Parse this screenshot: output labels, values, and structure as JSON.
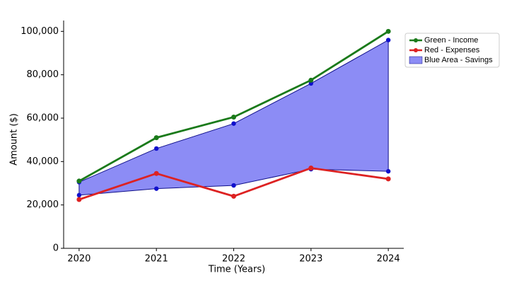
{
  "chart_data": {
    "type": "line",
    "x_label": "Time (Years)",
    "y_label": "Amount ($)",
    "x": [
      2020,
      2021,
      2022,
      2023,
      2024
    ],
    "xlim": [
      2019.8,
      2024.2
    ],
    "xticks": [
      2020,
      2021,
      2022,
      2023,
      2024
    ],
    "ylim": [
      0,
      105000
    ],
    "yticks": [
      0,
      {
        "value": 20000,
        "label": "20,000"
      },
      {
        "value": 40000,
        "label": "40,000"
      },
      {
        "value": 60000,
        "label": "60,000"
      },
      {
        "value": 80000,
        "label": "80,000"
      },
      {
        "value": 100000,
        "label": "100,000"
      }
    ],
    "legend": "upper right outside",
    "area": {
      "name": "Blue Area - Savings",
      "color": "#8c8cf5",
      "edge_color": "#10108a",
      "point_color": "#1010cc",
      "upper": [
        30500,
        46000,
        57500,
        76000,
        96000
      ],
      "lower": [
        24500,
        27500,
        29000,
        36500,
        35500
      ]
    },
    "series": [
      {
        "name": "Green - Income",
        "color": "#1a7a1a",
        "values": [
          31000,
          51000,
          60500,
          77500,
          100000
        ]
      },
      {
        "name": "Red - Expenses",
        "color": "#dd2222",
        "values": [
          22500,
          34500,
          24000,
          37000,
          32000
        ]
      }
    ]
  }
}
